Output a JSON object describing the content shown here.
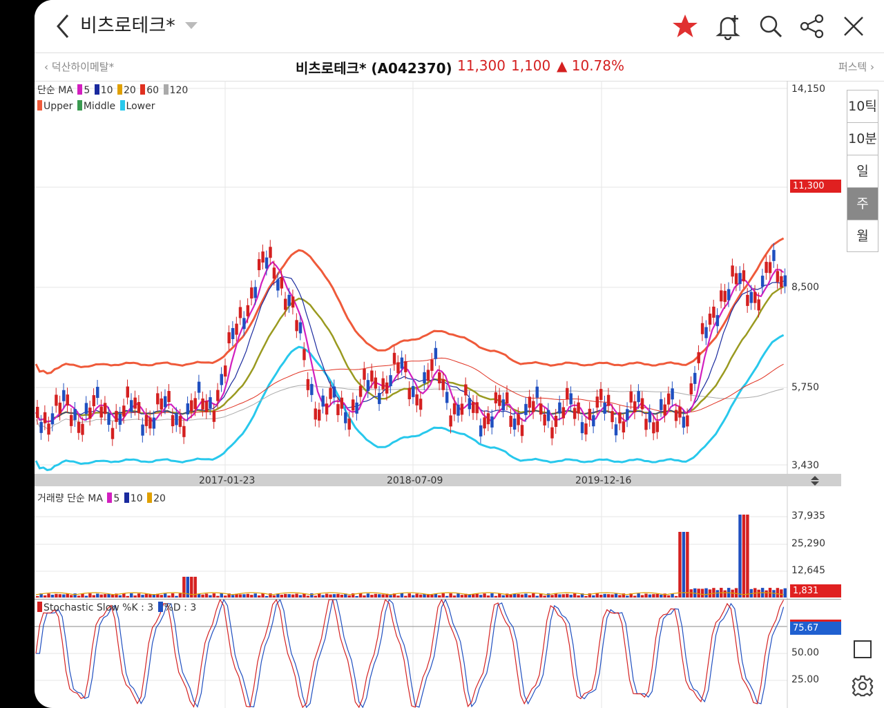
{
  "header": {
    "title": "비츠로테크*",
    "icons": [
      "back-chevron-icon",
      "dropdown-triangle-icon",
      "star-icon",
      "bell-add-icon",
      "search-icon",
      "share-icon",
      "close-icon"
    ],
    "star_color": "#e03030"
  },
  "infobar": {
    "prev_stock": "덕산하이메탈*",
    "stock_name": "비츠로테크* (A042370)",
    "price": "11,300",
    "change": "1,100",
    "change_pct": "10.78%",
    "next_stock": "퍼스텍"
  },
  "colors": {
    "up": "#d42020",
    "down": "#1f4fc0",
    "ma5": "#d21fbf",
    "ma10": "#1a2a9e",
    "ma20": "#e0a000",
    "ma60": "#e03020",
    "ma120": "#aaaaaa",
    "upper": "#ef5a3a",
    "middle": "#9a9a20",
    "lower": "#28c8ec"
  },
  "price_panel": {
    "legend_line1": {
      "label": "단순 MA",
      "items": [
        "5",
        "10",
        "20",
        "60",
        "120"
      ]
    },
    "legend_line2": [
      "Upper",
      "Middle",
      "Lower"
    ],
    "y_labels": [
      "14,150",
      "8,500",
      "5,750",
      "3,430"
    ],
    "current_price_tag": "11,300",
    "x_labels": [
      "2017-01-23",
      "2018-07-09",
      "2019-12-16"
    ]
  },
  "volume_panel": {
    "legend": {
      "label": "거래량 단순 MA",
      "items": [
        "5",
        "10",
        "20"
      ]
    },
    "y_labels": [
      "37,935",
      "25,290",
      "12,645"
    ],
    "current_tag": "1,831"
  },
  "stoch_panel": {
    "legend": {
      "k_label": "Stochastic Slow %K : 3",
      "d_label": "%D : 3"
    },
    "y_labels": [
      "50.00",
      "25.00"
    ],
    "current_tag": "75.67"
  },
  "toolbar": {
    "buttons": [
      "10틱",
      "10분",
      "일",
      "주",
      "월"
    ],
    "active": "주"
  }
}
